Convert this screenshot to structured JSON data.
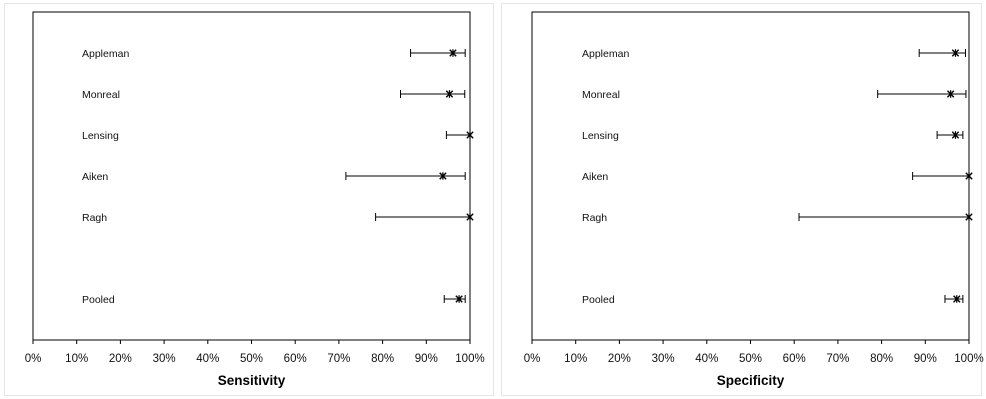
{
  "chart_data": [
    {
      "type": "forest",
      "xlabel": "Sensitivity",
      "xlim": [
        0,
        100
      ],
      "xticks": [
        "0%",
        "10%",
        "20%",
        "30%",
        "40%",
        "50%",
        "60%",
        "70%",
        "80%",
        "90%",
        "100%"
      ],
      "rows": [
        {
          "label": "Appleman",
          "estimate": 96.1,
          "lower": 86.4,
          "upper": 98.9
        },
        {
          "label": "Monreal",
          "estimate": 95.3,
          "lower": 84.1,
          "upper": 98.8
        },
        {
          "label": "Lensing",
          "estimate": 100,
          "lower": 94.6,
          "upper": 100
        },
        {
          "label": "Aiken",
          "estimate": 93.8,
          "lower": 71.6,
          "upper": 98.9
        },
        {
          "label": "Ragh",
          "estimate": 100,
          "lower": 78.4,
          "upper": 100
        },
        {
          "label": "Pooled",
          "estimate": 97.5,
          "lower": 94.1,
          "upper": 98.9,
          "gap_before": true
        }
      ]
    },
    {
      "type": "forest",
      "xlabel": "Specificity",
      "xlim": [
        0,
        100
      ],
      "xticks": [
        "0%",
        "10%",
        "20%",
        "30%",
        "40%",
        "50%",
        "60%",
        "70%",
        "80%",
        "90%",
        "100%"
      ],
      "rows": [
        {
          "label": "Appleman",
          "estimate": 96.9,
          "lower": 88.6,
          "upper": 99.2
        },
        {
          "label": "Monreal",
          "estimate": 95.8,
          "lower": 79.1,
          "upper": 99.3
        },
        {
          "label": "Lensing",
          "estimate": 96.9,
          "lower": 92.7,
          "upper": 98.6
        },
        {
          "label": "Aiken",
          "estimate": 100,
          "lower": 87.1,
          "upper": 100
        },
        {
          "label": "Ragh",
          "estimate": 100,
          "lower": 61.1,
          "upper": 100
        },
        {
          "label": "Pooled",
          "estimate": 97.2,
          "lower": 94.5,
          "upper": 98.6,
          "gap_before": true
        }
      ]
    }
  ]
}
